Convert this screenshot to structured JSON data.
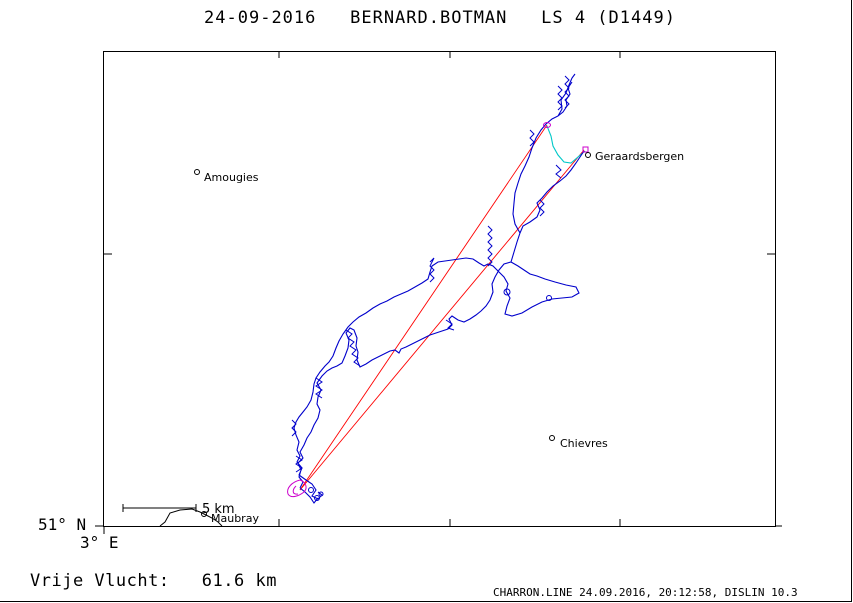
{
  "title": {
    "date": "24-09-2016",
    "pilot": "BERNARD.BOTMAN",
    "glider": "LS 4 (D1449)"
  },
  "axes": {
    "lat_label": "51° N",
    "lon_label": "3° E"
  },
  "scale_bar": {
    "label": "5 km"
  },
  "places": [
    {
      "name": "Amougies"
    },
    {
      "name": "Geraardsbergen"
    },
    {
      "name": "Chievres"
    },
    {
      "name": "Maubray"
    }
  ],
  "distance": {
    "label": "Vrije Vlucht:",
    "value": "61.6 km"
  },
  "footer": "CHARRON.LINE 24.09.2016, 20:12:58, DISLIN 10.3",
  "colors": {
    "track": "#0000cc",
    "task_lines": "#ff0000",
    "turnpoint": "#cc00cc",
    "final_glide": "#00c8c8"
  }
}
